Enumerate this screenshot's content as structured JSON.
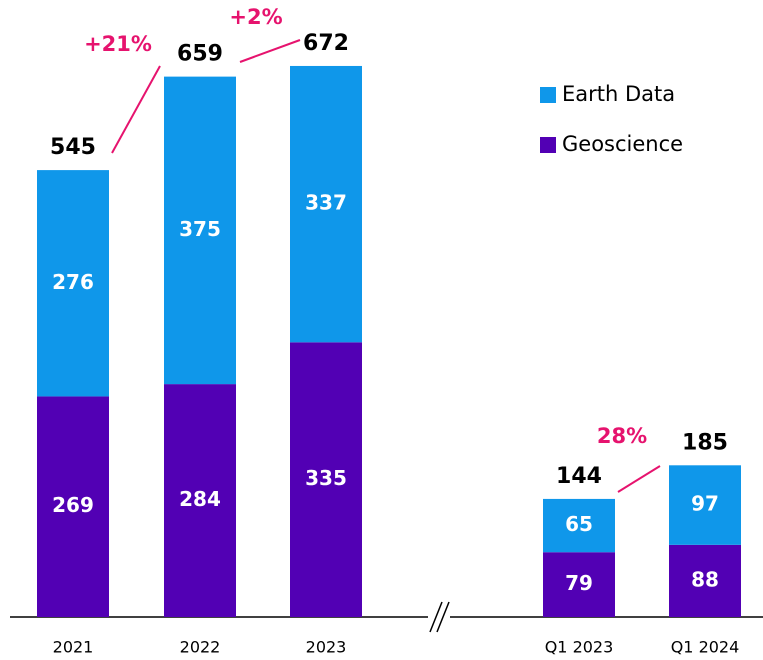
{
  "chart_data": {
    "type": "stacked-bar",
    "categories": [
      "2021",
      "2022",
      "2023",
      "Q1 2023",
      "Q1 2024"
    ],
    "series": [
      {
        "name": "Earth Data",
        "color": "#0f97ea",
        "values": [
          276,
          375,
          337,
          65,
          97
        ]
      },
      {
        "name": "Geoscience",
        "color": "#5200b4",
        "values": [
          269,
          284,
          335,
          79,
          88
        ]
      }
    ],
    "totals": [
      545,
      659,
      672,
      144,
      185
    ],
    "annotations": [
      "+21%",
      "+2%",
      "28%"
    ],
    "ylim": [
      0,
      700
    ]
  }
}
